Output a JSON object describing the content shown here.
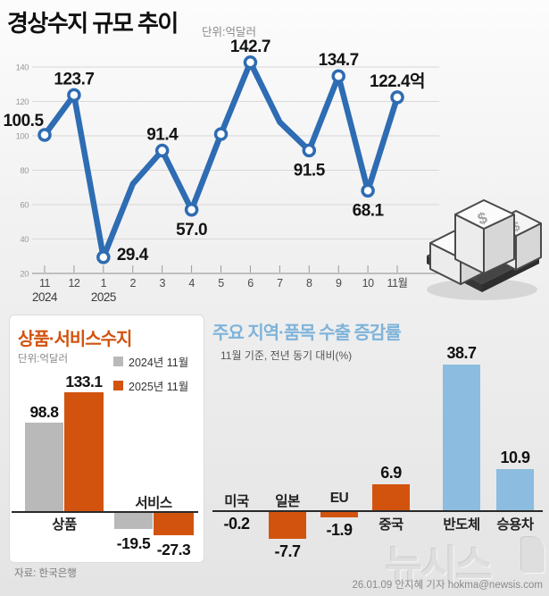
{
  "page": {
    "watermark": "뉴시스",
    "credit": "26.01.09 안지혜 기자 hokma@newsis.com"
  },
  "colors": {
    "line_blue": "#2e6cb3",
    "orange": "#d2530e",
    "light_blue": "#8cbcdf",
    "title_blue": "#7fb3da",
    "gray_bar": "#b9b9b9",
    "axis_black": "#2a2a2a"
  },
  "chart_data": [
    {
      "type": "line",
      "title": "경상수지 규모 추이",
      "unit": "단위:억달러",
      "x": [
        "11",
        "12",
        "1",
        "2",
        "3",
        "4",
        "5",
        "6",
        "7",
        "8",
        "9",
        "10",
        "11월"
      ],
      "x_year_labels": [
        {
          "index": 0,
          "label": "2024"
        },
        {
          "index": 2,
          "label": "2025"
        }
      ],
      "values": [
        100.5,
        123.7,
        29.4,
        72,
        91.4,
        57.0,
        101,
        142.7,
        108,
        91.5,
        134.7,
        68.1,
        122.4
      ],
      "point_labels": [
        "100.5",
        "123.7",
        "29.4",
        "",
        "91.4",
        "57.0",
        "",
        "142.7",
        "",
        "91.5",
        "134.7",
        "68.1",
        "122.4억"
      ],
      "label_pos": [
        "above-left",
        "above",
        "right",
        "",
        "above",
        "below",
        "",
        "above",
        "",
        "below",
        "above",
        "below",
        "above"
      ],
      "markers": [
        true,
        true,
        true,
        false,
        true,
        true,
        true,
        true,
        false,
        true,
        true,
        true,
        true
      ],
      "ylim": [
        20,
        140
      ],
      "y_ticks": [
        20,
        40,
        60,
        80,
        100,
        120,
        140
      ],
      "grid": true,
      "line_color": "#2e6cb3"
    },
    {
      "type": "bar",
      "title": "상품·서비스수지",
      "unit": "단위:억달러",
      "categories": [
        "상품",
        "서비스"
      ],
      "series": [
        {
          "name": "2024년 11월",
          "color": "#b9b9b9",
          "values": [
            98.8,
            -19.5
          ],
          "labels": [
            "98.8",
            "-19.5"
          ]
        },
        {
          "name": "2025년 11월",
          "color": "#d2530e",
          "values": [
            133.1,
            -27.3
          ],
          "labels": [
            "133.1",
            "-27.3"
          ]
        }
      ],
      "source": "자료: 한국은행"
    },
    {
      "type": "bar",
      "title": "주요 지역·품목 수출 증감률",
      "subtitle": "11월 기준, 전년 동기 대비(%)",
      "categories": [
        "미국",
        "일본",
        "EU",
        "중국",
        "반도체",
        "승용차"
      ],
      "values": [
        -0.2,
        -7.7,
        -1.9,
        6.9,
        38.7,
        10.9
      ],
      "value_labels": [
        "-0.2",
        "-7.7",
        "-1.9",
        "6.9",
        "38.7",
        "10.9"
      ],
      "bar_colors": [
        "#d2530e",
        "#d2530e",
        "#d2530e",
        "#d2530e",
        "#8cbcdf",
        "#8cbcdf"
      ]
    }
  ]
}
